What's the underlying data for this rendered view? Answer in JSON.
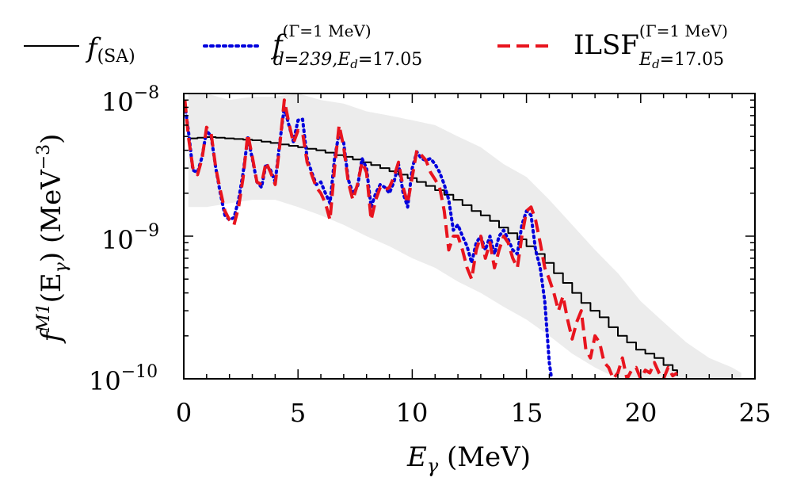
{
  "chart_data": {
    "type": "line",
    "title": "",
    "xlabel": "E_γ (MeV)",
    "ylabel": "f^{M1}(E_γ) (MeV^{-3})",
    "xlim": [
      0,
      25
    ],
    "ylim": [
      1e-10,
      1e-08
    ],
    "yscale": "log",
    "x_ticks": [
      0,
      5,
      10,
      15,
      20,
      25
    ],
    "y_ticks": [
      1e-10,
      1e-09,
      1e-08
    ],
    "x_tick_labels": [
      "0",
      "5",
      "10",
      "15",
      "20",
      "25"
    ],
    "y_tick_labels": [
      {
        "base": "10",
        "exp": "−10"
      },
      {
        "base": "10",
        "exp": "−9"
      },
      {
        "base": "10",
        "exp": "−8"
      }
    ],
    "legend_position": "top (above plot)",
    "legend": [
      {
        "id": "sa",
        "label": "f(SA)",
        "style": "solid",
        "color": "#000000"
      },
      {
        "id": "fd",
        "label": "f(Γ=1 MeV) d=239,Ed=17.05",
        "style": "dotted",
        "color": "#0000dd"
      },
      {
        "id": "ilsf",
        "label": "ILSF(Γ=1 MeV) Ed=17.05",
        "style": "dashed",
        "color": "#e8141e"
      }
    ],
    "legend_text": {
      "sa_main": "f",
      "sa_sub": "(SA)",
      "fd_main": "f",
      "fd_sup": "(Γ=1 MeV)",
      "fd_sub": "d=239,E",
      "fd_sub2": "d",
      "fd_sub3": "=17.05",
      "ilsf_main": "ILSF",
      "ilsf_sup": "(Γ=1 MeV)",
      "ilsf_sub": "E",
      "ilsf_sub2": "d",
      "ilsf_sub3": "=17.05"
    },
    "axis_text": {
      "x_main": "E",
      "x_sub": "γ",
      "x_unit": " (MeV)",
      "y_main": "f",
      "y_sup": "M1",
      "y_paren": "(E",
      "y_sub": "γ",
      "y_unit": ") (MeV",
      "y_unit_sup": "−3",
      "y_close": ")"
    },
    "series": [
      {
        "name": "f(SA)",
        "color": "#000000",
        "style": "solid",
        "step": true,
        "x": [
          0.2,
          0.6,
          1.0,
          1.4,
          1.8,
          2.2,
          2.6,
          3.0,
          3.4,
          3.8,
          4.2,
          4.6,
          5.0,
          5.4,
          5.8,
          6.2,
          6.6,
          7.0,
          7.4,
          7.8,
          8.2,
          8.6,
          9.0,
          9.4,
          9.8,
          10.2,
          10.6,
          11.0,
          11.4,
          11.8,
          12.2,
          12.6,
          13.0,
          13.4,
          13.8,
          14.2,
          14.6,
          15.0,
          15.4,
          15.8,
          16.2,
          16.6,
          17.0,
          17.4,
          17.8,
          18.2,
          18.6,
          19.0,
          19.4,
          19.8,
          20.2,
          20.6,
          21.0,
          21.4,
          21.6
        ],
        "values": [
          4.85e-09,
          4.9e-09,
          4.95e-09,
          4.9e-09,
          4.85e-09,
          4.8e-09,
          4.75e-09,
          4.7e-09,
          4.6e-09,
          4.5e-09,
          4.4e-09,
          4.3e-09,
          4.2e-09,
          4.1e-09,
          4e-09,
          3.85e-09,
          3.7e-09,
          3.6e-09,
          3.45e-09,
          3.3e-09,
          3.15e-09,
          3e-09,
          2.85e-09,
          2.7e-09,
          2.55e-09,
          2.4e-09,
          2.25e-09,
          2.1e-09,
          1.95e-09,
          1.8e-09,
          1.65e-09,
          1.5e-09,
          1.4e-09,
          1.28e-09,
          1.15e-09,
          1.05e-09,
          9.5e-10,
          8.5e-10,
          7.5e-10,
          6.5e-10,
          5.5e-10,
          4.7e-10,
          4e-10,
          3.4e-10,
          3e-10,
          2.7e-10,
          2.3e-10,
          2e-10,
          1.8e-10,
          1.6e-10,
          1.5e-10,
          1.4e-10,
          1.25e-10,
          1.15e-10,
          1.05e-10
        ]
      },
      {
        "name": "f(Γ=1 MeV) d=239,Ed=17.05",
        "color": "#0000dd",
        "style": "dotted",
        "step": false,
        "x": [
          0.05,
          0.2,
          0.4,
          0.6,
          0.8,
          1.0,
          1.2,
          1.4,
          1.6,
          1.8,
          2.0,
          2.2,
          2.4,
          2.6,
          2.8,
          3.0,
          3.2,
          3.4,
          3.6,
          3.8,
          4.0,
          4.2,
          4.4,
          4.6,
          4.8,
          5.0,
          5.2,
          5.4,
          5.6,
          5.8,
          6.0,
          6.2,
          6.4,
          6.6,
          6.8,
          7.0,
          7.2,
          7.4,
          7.6,
          7.8,
          8.0,
          8.2,
          8.4,
          8.6,
          8.8,
          9.0,
          9.2,
          9.4,
          9.6,
          9.8,
          10.0,
          10.2,
          10.4,
          10.6,
          10.8,
          11.0,
          11.2,
          11.4,
          11.6,
          11.8,
          12.0,
          12.2,
          12.4,
          12.6,
          12.8,
          13.0,
          13.2,
          13.4,
          13.6,
          13.8,
          14.0,
          14.2,
          14.4,
          14.6,
          14.8,
          15.0,
          15.2,
          15.4,
          15.6,
          15.8,
          16.0,
          16.1
        ],
        "values": [
          8.3e-09,
          5.5e-09,
          2.9e-09,
          2.8e-09,
          3.6e-09,
          5.5e-09,
          5e-09,
          3e-09,
          2e-09,
          1.4e-09,
          1.3e-09,
          1.35e-09,
          1.8e-09,
          2.8e-09,
          4.9e-09,
          3.5e-09,
          2.4e-09,
          2.2e-09,
          3.2e-09,
          2.9e-09,
          2.4e-09,
          4.5e-09,
          8e-09,
          6e-09,
          4.6e-09,
          6.5e-09,
          6.6e-09,
          3.5e-09,
          2.8e-09,
          2.3e-09,
          2.4e-09,
          2e-09,
          1.7e-09,
          3.5e-09,
          5.3e-09,
          4.5e-09,
          2.5e-09,
          2e-09,
          2.2e-09,
          3.5e-09,
          3e-09,
          1.6e-09,
          2e-09,
          2.3e-09,
          2.2e-09,
          2e-09,
          2.4e-09,
          3.2e-09,
          2e-09,
          1.6e-09,
          3e-09,
          3.9e-09,
          3.5e-09,
          3.4e-09,
          3.5e-09,
          3.2e-09,
          2.8e-09,
          2.3e-09,
          1.8e-09,
          1.1e-09,
          1.2e-09,
          1e-09,
          8.5e-10,
          6.5e-10,
          9e-10,
          1e-09,
          8e-10,
          1e-09,
          7.5e-10,
          1e-09,
          1.1e-09,
          9.5e-10,
          8e-10,
          7.5e-10,
          1.2e-09,
          1.5e-09,
          1.4e-09,
          8e-10,
          6e-10,
          3.5e-10,
          1.3e-10,
          1e-10
        ]
      },
      {
        "name": "ILSF(Γ=1 MeV) Ed=17.05",
        "color": "#e8141e",
        "style": "dashed",
        "step": false,
        "x": [
          0.05,
          0.2,
          0.4,
          0.6,
          0.8,
          1.0,
          1.2,
          1.4,
          1.6,
          1.8,
          2.0,
          2.2,
          2.4,
          2.6,
          2.8,
          3.0,
          3.2,
          3.4,
          3.6,
          3.8,
          4.0,
          4.2,
          4.4,
          4.6,
          4.8,
          5.0,
          5.2,
          5.4,
          5.6,
          5.8,
          6.0,
          6.2,
          6.4,
          6.6,
          6.8,
          7.0,
          7.2,
          7.4,
          7.6,
          7.8,
          8.0,
          8.2,
          8.4,
          8.6,
          8.8,
          9.0,
          9.2,
          9.4,
          9.6,
          9.8,
          10.0,
          10.2,
          10.4,
          10.6,
          10.8,
          11.0,
          11.2,
          11.4,
          11.6,
          11.8,
          12.0,
          12.2,
          12.4,
          12.6,
          12.8,
          13.0,
          13.2,
          13.4,
          13.6,
          13.8,
          14.0,
          14.2,
          14.4,
          14.6,
          14.8,
          15.0,
          15.2,
          15.4,
          15.6,
          15.8,
          16.0,
          16.2,
          16.4,
          16.6,
          16.8,
          17.0,
          17.2,
          17.4,
          17.6,
          17.8,
          18.0,
          18.2,
          18.4,
          18.6,
          18.8,
          19.0,
          19.2,
          19.4,
          19.6,
          19.8,
          20.0,
          20.2,
          20.4,
          20.6,
          20.8,
          21.0,
          21.2,
          21.4,
          21.6
        ],
        "values": [
          9e-09,
          5e-09,
          3e-09,
          2.7e-09,
          3.5e-09,
          5.8e-09,
          5.2e-09,
          3e-09,
          2.1e-09,
          1.5e-09,
          1.3e-09,
          1.2e-09,
          1.6e-09,
          2.6e-09,
          5.2e-09,
          3.6e-09,
          2.4e-09,
          2.3e-09,
          3.3e-09,
          2.8e-09,
          2.3e-09,
          4.3e-09,
          9e-09,
          6.2e-09,
          4.5e-09,
          5.5e-09,
          5.3e-09,
          3.3e-09,
          2.7e-09,
          2.2e-09,
          2e-09,
          1.7e-09,
          1.3e-09,
          3e-09,
          6e-09,
          4.2e-09,
          2.4e-09,
          1.8e-09,
          2.3e-09,
          3.3e-09,
          2.8e-09,
          1.3e-09,
          1.8e-09,
          2.2e-09,
          2.1e-09,
          2.2e-09,
          2.6e-09,
          3.3e-09,
          2.2e-09,
          1.7e-09,
          2.6e-09,
          4e-09,
          3.7e-09,
          3.4e-09,
          2.8e-09,
          2.5e-09,
          2.2e-09,
          1.5e-09,
          8e-10,
          1e-09,
          1e-09,
          8e-10,
          6e-10,
          5e-10,
          8e-10,
          1e-09,
          7e-10,
          9e-10,
          6e-10,
          8e-10,
          1e-09,
          9e-10,
          7e-10,
          6e-10,
          1e-09,
          1.5e-09,
          1.6e-09,
          1.3e-09,
          9e-10,
          6e-10,
          5e-10,
          4e-10,
          3e-10,
          3.8e-10,
          2.6e-10,
          1.9e-10,
          2.5e-10,
          3e-10,
          1.6e-10,
          1.4e-10,
          2e-10,
          1.8e-10,
          1.3e-10,
          1.2e-10,
          1e-10,
          1.1e-10,
          1.4e-10,
          1e-10,
          1.15e-10,
          1.2e-10,
          1e-10,
          1.15e-10,
          1.1e-10,
          1.3e-10,
          1.1e-10,
          1e-10,
          1.2e-10,
          1.05e-10,
          1.1e-10
        ]
      },
      {
        "name": "background",
        "color": "#ececec",
        "style": "band",
        "x": [
          0.2,
          1.0,
          2.0,
          3.0,
          4.0,
          5.0,
          6.0,
          7.0,
          8.0,
          9.0,
          10.0,
          11.0,
          12.0,
          13.0,
          14.0,
          15.0,
          16.0,
          17.0,
          18.0,
          19.0,
          20.0,
          21.0,
          22.0,
          23.0,
          24.0,
          24.4
        ],
        "upper": [
          1e-08,
          1e-08,
          9e-09,
          9.5e-09,
          9.5e-09,
          1e-08,
          9e-09,
          8.5e-09,
          7.5e-09,
          7e-09,
          6.5e-09,
          6e-09,
          5e-09,
          4.2e-09,
          3.2e-09,
          2.6e-09,
          1.8e-09,
          1.2e-09,
          8e-10,
          5.5e-10,
          3.5e-10,
          2.5e-10,
          1.8e-10,
          1.4e-10,
          1.2e-10,
          1.1e-10
        ],
        "lower": [
          1.6e-09,
          1.6e-09,
          1.7e-09,
          1.8e-09,
          1.8e-09,
          1.6e-09,
          1.4e-09,
          1.2e-09,
          1e-09,
          8.5e-10,
          7e-10,
          6e-10,
          4.8e-10,
          4e-10,
          3.2e-10,
          2.6e-10,
          2e-10,
          1.5e-10,
          1.2e-10,
          1e-10,
          1e-10,
          1e-10,
          1e-10,
          1e-10,
          1e-10,
          1e-10
        ]
      }
    ]
  }
}
